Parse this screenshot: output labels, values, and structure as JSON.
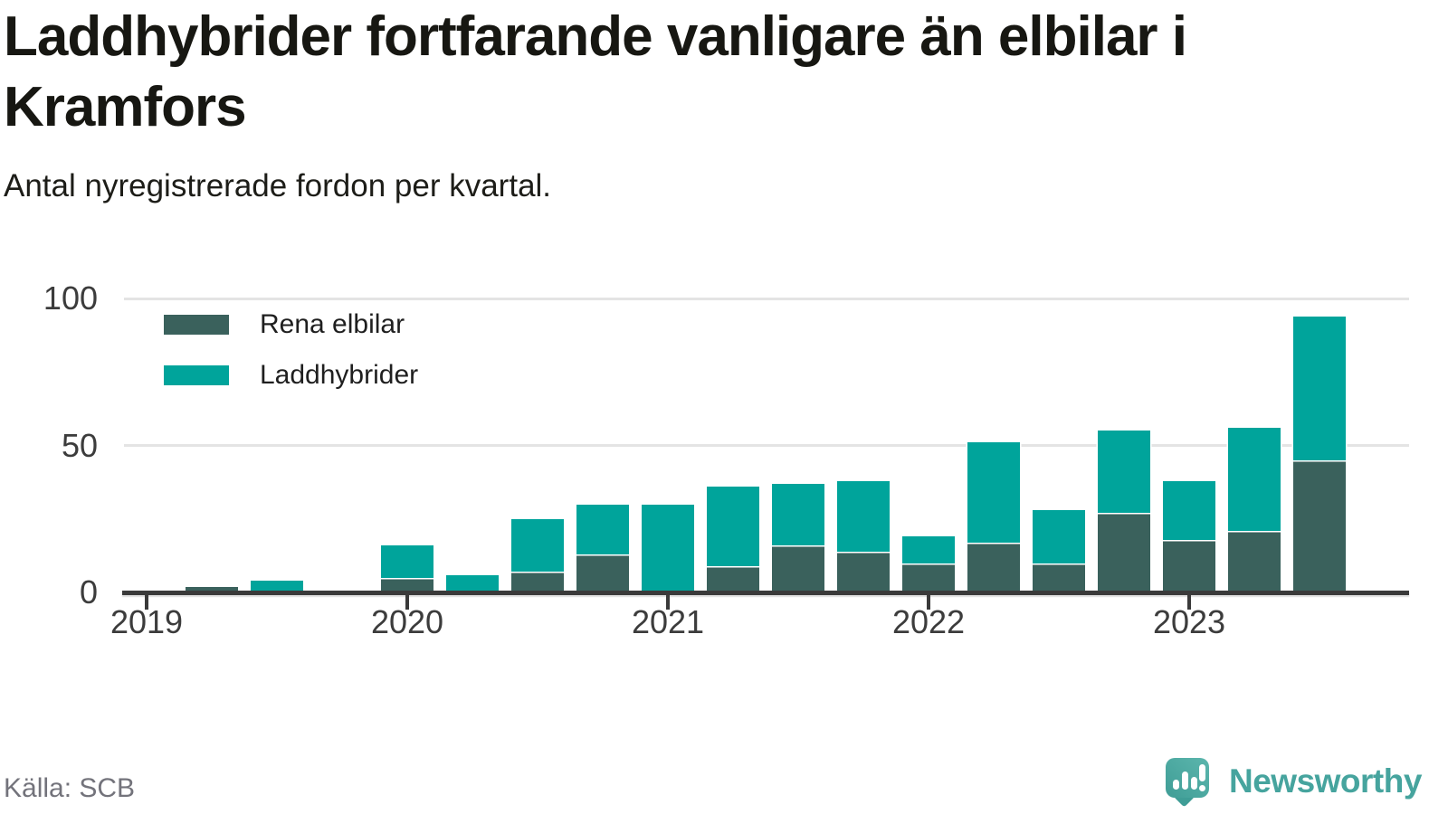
{
  "header": {
    "title_lines": [
      "Laddhybrider fortfarande vanligare än elbilar i",
      "Kramfors"
    ],
    "subtitle": "Antal nyregistrerade fordon per kvartal."
  },
  "chart_data": {
    "type": "bar",
    "stacked": true,
    "title": "Laddhybrider fortfarande vanligare än elbilar i Kramfors",
    "subtitle": "Antal nyregistrerade fordon per kvartal.",
    "categories": [
      "2019 Q1",
      "2019 Q2",
      "2019 Q3",
      "2019 Q4",
      "2020 Q1",
      "2020 Q2",
      "2020 Q3",
      "2020 Q4",
      "2021 Q1",
      "2021 Q2",
      "2021 Q3",
      "2021 Q4",
      "2022 Q1",
      "2022 Q2",
      "2022 Q3",
      "2022 Q4",
      "2023 Q1",
      "2023 Q2",
      "2023 Q3"
    ],
    "series": [
      {
        "name": "Rena elbilar",
        "color": "#3a615c",
        "values": [
          0,
          2,
          0,
          0,
          5,
          0,
          7,
          13,
          0,
          9,
          16,
          14,
          10,
          17,
          10,
          27,
          18,
          21,
          45
        ]
      },
      {
        "name": "Laddhybrider",
        "color": "#00a49b",
        "values": [
          0,
          0,
          4,
          0,
          11,
          6,
          18,
          17,
          30,
          27,
          21,
          24,
          9,
          34,
          18,
          28,
          20,
          35,
          49
        ]
      }
    ],
    "ylim": [
      0,
      100
    ],
    "yticks": [
      0,
      50,
      100
    ],
    "year_tick_labels": [
      "2019",
      "2020",
      "2021",
      "2022",
      "2023"
    ],
    "grid": "horizontal",
    "legend_position": "top-left"
  },
  "footer": {
    "source": "Källa: SCB",
    "brand": "Newsworthy"
  }
}
